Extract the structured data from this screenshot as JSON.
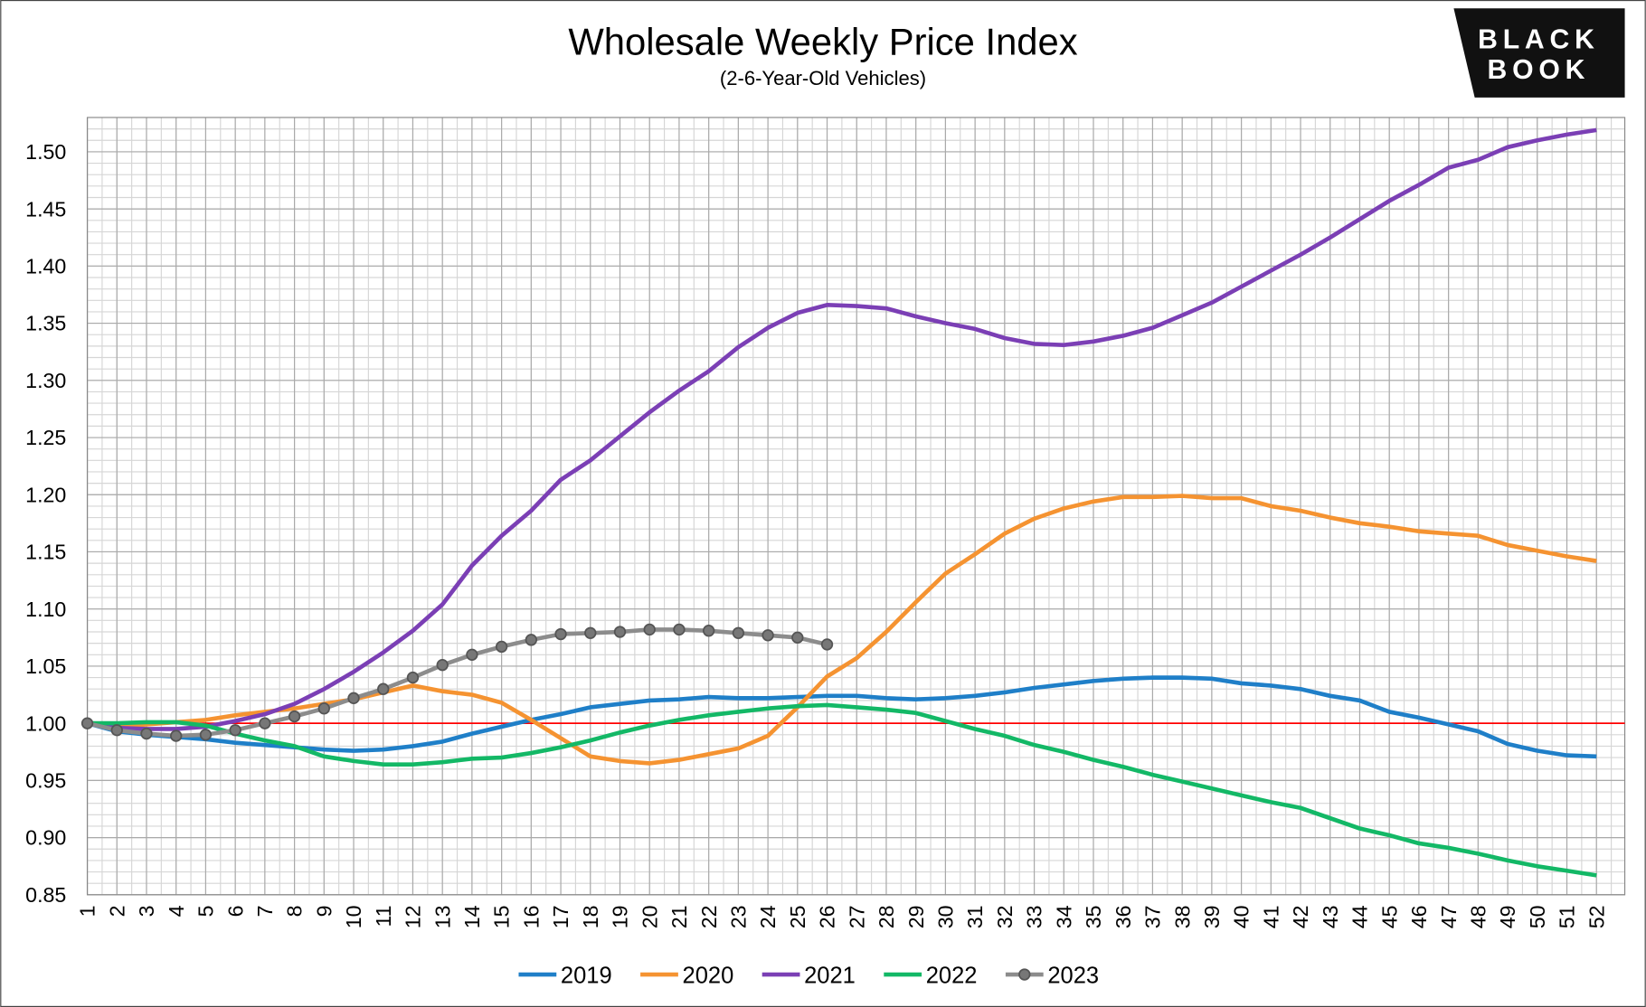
{
  "chart_data": {
    "type": "line",
    "title": "Wholesale Weekly Price Index",
    "subtitle": "(2-6-Year-Old Vehicles)",
    "logo": [
      "BLACK",
      "BOOK"
    ],
    "categories": [
      "1",
      "2",
      "3",
      "4",
      "5",
      "6",
      "7",
      "8",
      "9",
      "10",
      "11",
      "12",
      "13",
      "14",
      "15",
      "16",
      "17",
      "18",
      "19",
      "20",
      "21",
      "22",
      "23",
      "24",
      "25",
      "26",
      "27",
      "28",
      "29",
      "30",
      "31",
      "32",
      "33",
      "34",
      "35",
      "36",
      "37",
      "38",
      "39",
      "40",
      "41",
      "42",
      "43",
      "44",
      "45",
      "46",
      "47",
      "48",
      "49",
      "50",
      "51",
      "52"
    ],
    "ylim": [
      0.85,
      1.53
    ],
    "yticks": [
      {
        "value": 0.85,
        "label": "0.85"
      },
      {
        "value": 0.9,
        "label": "0.90"
      },
      {
        "value": 0.95,
        "label": "0.95"
      },
      {
        "value": 1,
        "label": "1.00"
      },
      {
        "value": 1.05,
        "label": "1.05"
      },
      {
        "value": 1.1,
        "label": "1.10"
      },
      {
        "value": 1.15,
        "label": "1.15"
      },
      {
        "value": 1.2,
        "label": "1.20"
      },
      {
        "value": 1.25,
        "label": "1.25"
      },
      {
        "value": 1.3,
        "label": "1.30"
      },
      {
        "value": 1.35,
        "label": "1.35"
      },
      {
        "value": 1.4,
        "label": "1.40"
      },
      {
        "value": 1.45,
        "label": "1.45"
      },
      {
        "value": 1.5,
        "label": "1.50"
      }
    ],
    "grid": true,
    "minor_grid": true,
    "reference_line": {
      "value": 1,
      "color": "#ff0000"
    },
    "legend": "bottom",
    "series": [
      {
        "name": "2019",
        "color": "#1f7fc8",
        "values": [
          1.0,
          0.993,
          0.99,
          0.988,
          0.986,
          0.983,
          0.981,
          0.979,
          0.977,
          0.976,
          0.977,
          0.98,
          0.984,
          0.991,
          0.997,
          1.003,
          1.008,
          1.014,
          1.017,
          1.02,
          1.021,
          1.023,
          1.022,
          1.022,
          1.023,
          1.024,
          1.024,
          1.022,
          1.021,
          1.022,
          1.024,
          1.027,
          1.031,
          1.034,
          1.037,
          1.039,
          1.04,
          1.04,
          1.039,
          1.035,
          1.033,
          1.03,
          1.024,
          1.02,
          1.01,
          1.005,
          0.999,
          0.993,
          0.982,
          0.976,
          0.972,
          0.971
        ]
      },
      {
        "name": "2020",
        "color": "#f59331",
        "values": [
          1.0,
          0.997,
          0.999,
          1.001,
          1.003,
          1.007,
          1.01,
          1.013,
          1.017,
          1.021,
          1.027,
          1.033,
          1.028,
          1.025,
          1.018,
          1.003,
          0.987,
          0.971,
          0.967,
          0.965,
          0.968,
          0.973,
          0.978,
          0.989,
          1.014,
          1.041,
          1.057,
          1.08,
          1.106,
          1.131,
          1.148,
          1.166,
          1.179,
          1.188,
          1.194,
          1.198,
          1.198,
          1.199,
          1.197,
          1.197,
          1.19,
          1.186,
          1.18,
          1.175,
          1.172,
          1.168,
          1.166,
          1.164,
          1.156,
          1.151,
          1.146,
          1.142
        ]
      },
      {
        "name": "2021",
        "color": "#7b3fb5",
        "values": [
          1.0,
          0.996,
          0.995,
          0.995,
          0.997,
          1.002,
          1.008,
          1.017,
          1.03,
          1.045,
          1.062,
          1.081,
          1.104,
          1.138,
          1.164,
          1.186,
          1.213,
          1.23,
          1.251,
          1.272,
          1.291,
          1.308,
          1.329,
          1.346,
          1.359,
          1.366,
          1.365,
          1.363,
          1.356,
          1.35,
          1.345,
          1.337,
          1.332,
          1.331,
          1.334,
          1.339,
          1.346,
          1.357,
          1.368,
          1.382,
          1.396,
          1.41,
          1.425,
          1.441,
          1.457,
          1.471,
          1.486,
          1.493,
          1.504,
          1.51,
          1.515,
          1.519
        ]
      },
      {
        "name": "2022",
        "color": "#13b866",
        "values": [
          1.0,
          1.0,
          1.001,
          1.001,
          0.998,
          0.991,
          0.985,
          0.98,
          0.971,
          0.967,
          0.964,
          0.964,
          0.966,
          0.969,
          0.97,
          0.974,
          0.979,
          0.985,
          0.992,
          0.998,
          1.003,
          1.007,
          1.01,
          1.013,
          1.015,
          1.016,
          1.014,
          1.012,
          1.009,
          1.002,
          0.995,
          0.989,
          0.981,
          0.975,
          0.968,
          0.962,
          0.955,
          0.949,
          0.943,
          0.937,
          0.931,
          0.926,
          0.917,
          0.908,
          0.902,
          0.895,
          0.891,
          0.886,
          0.88,
          0.875,
          0.871,
          0.867
        ]
      },
      {
        "name": "2023",
        "color": "#8c8c8c",
        "marker": true,
        "values": [
          1.0,
          0.994,
          0.991,
          0.989,
          0.99,
          0.994,
          1.0,
          1.006,
          1.013,
          1.022,
          1.03,
          1.04,
          1.051,
          1.06,
          1.067,
          1.073,
          1.078,
          1.079,
          1.08,
          1.082,
          1.082,
          1.081,
          1.079,
          1.077,
          1.075,
          1.069,
          null,
          null,
          null,
          null,
          null,
          null,
          null,
          null,
          null,
          null,
          null,
          null,
          null,
          null,
          null,
          null,
          null,
          null,
          null,
          null,
          null,
          null,
          null,
          null,
          null,
          null
        ]
      }
    ]
  }
}
